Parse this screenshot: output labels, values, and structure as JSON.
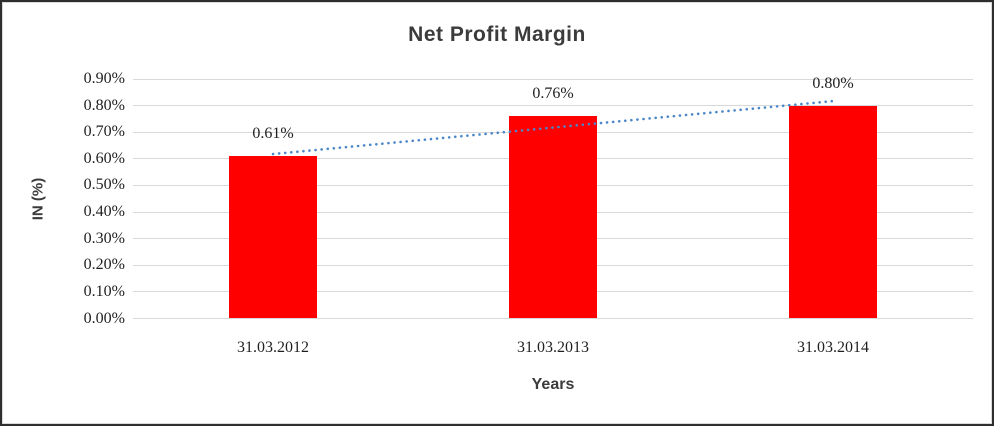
{
  "chart_data": {
    "type": "bar",
    "title": "Net Profit Margin",
    "xlabel": "Years",
    "ylabel": "IN (%)",
    "categories": [
      "31.03.2012",
      "31.03.2013",
      "31.03.2014"
    ],
    "values": [
      0.61,
      0.76,
      0.8
    ],
    "data_labels": [
      "0.61%",
      "0.76%",
      "0.80%"
    ],
    "ytick_values": [
      0.0,
      0.1,
      0.2,
      0.3,
      0.4,
      0.5,
      0.6,
      0.7,
      0.8,
      0.9
    ],
    "ytick_labels": [
      "0.00%",
      "0.10%",
      "0.20%",
      "0.30%",
      "0.40%",
      "0.50%",
      "0.60%",
      "0.70%",
      "0.80%",
      "0.90%"
    ],
    "ylim": [
      0,
      0.9
    ],
    "grid": "horizontal",
    "legend": "none",
    "trendline": {
      "type": "linear",
      "style": "dotted",
      "start_value": 0.618,
      "end_value": 0.817
    },
    "colors": {
      "bar": "#ff0000",
      "trendline": "#4a86c8",
      "gridline": "#d9d9d9",
      "title_text": "#3b3b3b",
      "tick_text": "#1f1f1f"
    }
  }
}
